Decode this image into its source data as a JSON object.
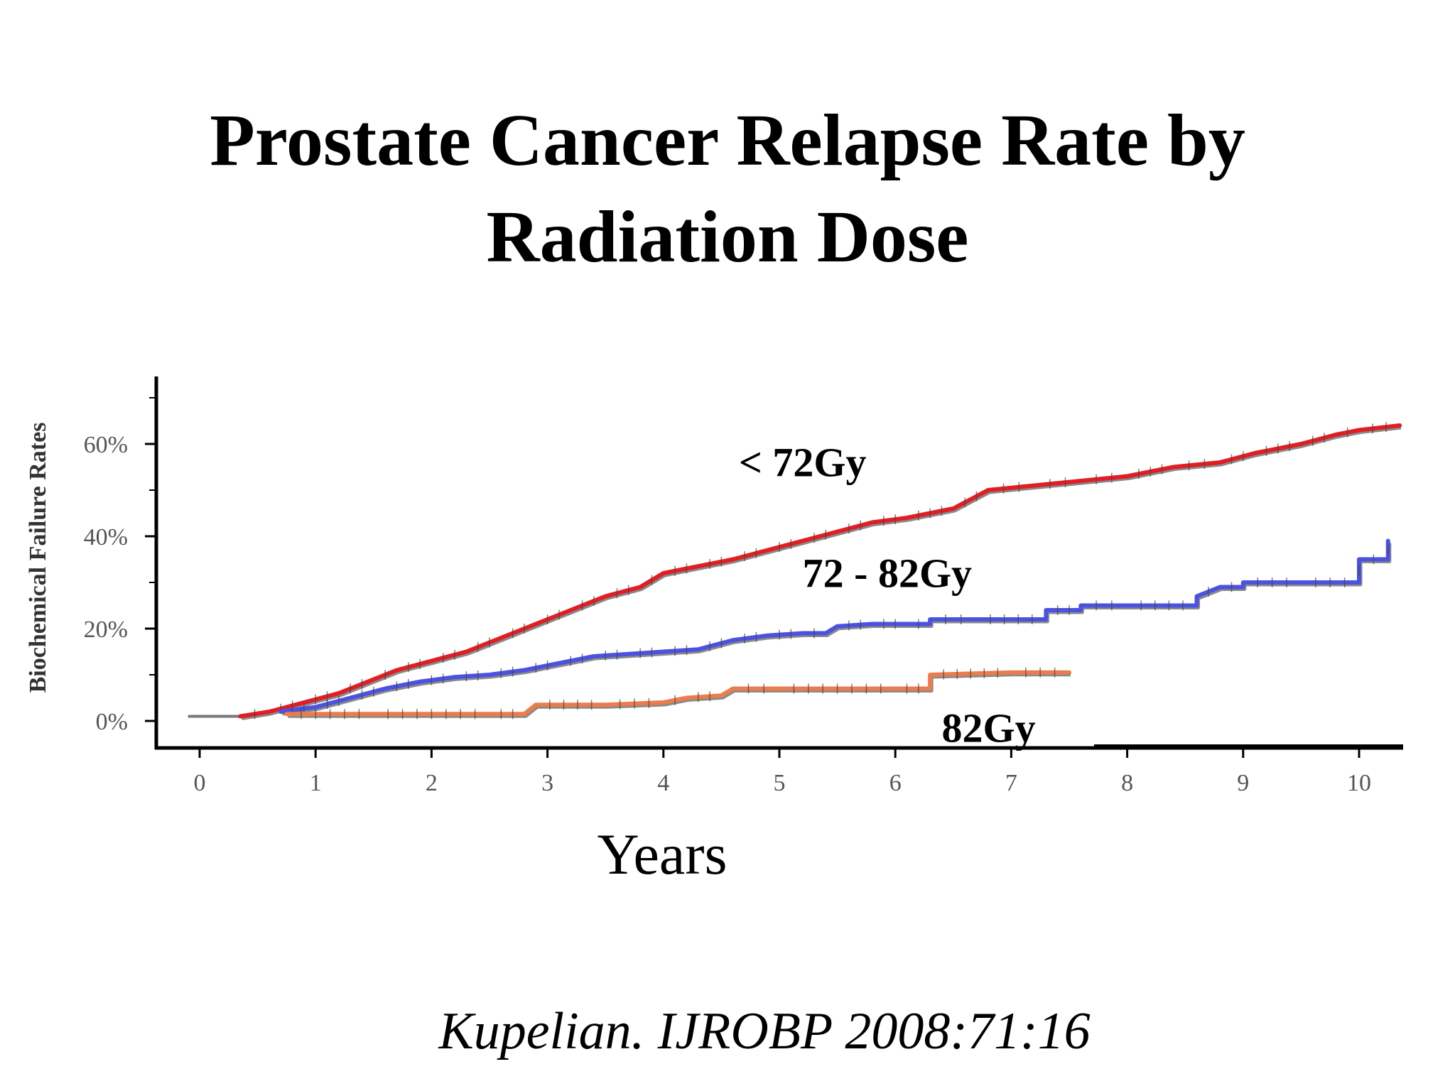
{
  "slide": {
    "title_line1": "Prostate Cancer Relapse Rate by",
    "title_line2": "Radiation Dose",
    "citation": "Kupelian. IJROBP 2008:71:16"
  },
  "chart_data": {
    "type": "line",
    "title": "Prostate Cancer Relapse Rate by Radiation Dose",
    "xlabel": "Years",
    "ylabel": "Biochemical Failure Rates",
    "xlim": [
      -0.45,
      10.8
    ],
    "ylim": [
      -7,
      74
    ],
    "x_ticks": [
      0,
      1,
      2,
      3,
      4,
      5,
      6,
      7,
      8,
      9,
      10
    ],
    "x_tick_labels": [
      "0",
      "1",
      "2",
      "3",
      "4",
      "5",
      "6",
      "7",
      "8",
      "9",
      "10"
    ],
    "y_ticks": [
      0,
      20,
      40,
      60
    ],
    "y_tick_labels": [
      "0%",
      "20%",
      "40%",
      "60%"
    ],
    "grid": false,
    "series": [
      {
        "name": "< 72Gy",
        "color": "#e01e25",
        "x": [
          0.35,
          0.6,
          0.9,
          1.2,
          1.5,
          1.7,
          2.0,
          2.3,
          2.6,
          2.9,
          3.2,
          3.5,
          3.8,
          4.0,
          4.3,
          4.6,
          4.9,
          5.2,
          5.5,
          5.8,
          6.1,
          6.5,
          6.8,
          7.2,
          7.6,
          8.0,
          8.4,
          8.8,
          9.1,
          9.5,
          9.8,
          10.0,
          10.35
        ],
        "y": [
          1,
          2,
          4,
          6,
          9,
          11,
          13,
          15,
          18,
          21,
          24,
          27,
          29,
          32,
          33.5,
          35,
          37,
          39,
          41,
          43,
          44,
          46,
          50,
          51,
          52,
          53,
          55,
          56,
          58,
          60,
          62,
          63,
          64
        ]
      },
      {
        "name": "72 - 82Gy",
        "color": "#4b52e0",
        "x": [
          0.7,
          1.0,
          1.3,
          1.6,
          1.9,
          2.2,
          2.5,
          2.8,
          3.1,
          3.4,
          3.7,
          4.0,
          4.3,
          4.6,
          4.9,
          5.2,
          5.4,
          5.5,
          5.8,
          6.1,
          6.3,
          6.3,
          6.7,
          7.3,
          7.3,
          7.6,
          7.6,
          8.0,
          8.6,
          8.6,
          8.8,
          9.0,
          9.0,
          9.5,
          10.0,
          10.0,
          10.25,
          10.25
        ],
        "y": [
          2,
          3,
          5,
          7,
          8.5,
          9.5,
          10,
          11,
          12.5,
          14,
          14.5,
          15,
          15.5,
          17.5,
          18.5,
          19,
          19,
          20.5,
          21,
          21,
          21,
          22,
          22,
          22,
          24,
          24,
          25,
          25,
          25,
          27,
          29,
          29,
          30,
          30,
          30,
          35,
          35,
          39
        ]
      },
      {
        "name": "82Gy",
        "color": "#ec7c4c",
        "x": [
          0.75,
          1.5,
          2.5,
          2.8,
          2.9,
          3.5,
          4.0,
          4.2,
          4.5,
          4.6,
          5.0,
          6.0,
          6.3,
          6.3,
          7.0,
          7.5
        ],
        "y": [
          1.5,
          1.5,
          1.5,
          1.5,
          3.5,
          3.5,
          4,
          5,
          5.5,
          7,
          7,
          7,
          7,
          10,
          10.5,
          10.5
        ]
      }
    ],
    "series_labels": [
      {
        "text": "< 72Gy",
        "x": 4.65,
        "y": 53
      },
      {
        "text": "72 - 82Gy",
        "x": 5.2,
        "y": 29
      },
      {
        "text": "82Gy",
        "x": 6.4,
        "y": -4.5
      }
    ]
  }
}
